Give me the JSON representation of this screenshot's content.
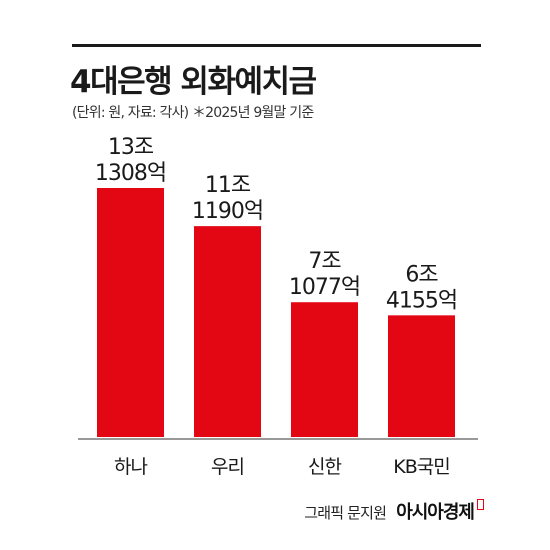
{
  "title": "4대은행 외화예치금",
  "subtitle": "(단위: 원, 자료: 각사) ＊2025년 9월말 기준",
  "credit": {
    "graphic": "그래픽 문지원",
    "logo": "아시아경제"
  },
  "colors": {
    "bar": "#e30613",
    "text": "#1a1a1a"
  },
  "chart_data": {
    "type": "bar",
    "categories": [
      "하나",
      "우리",
      "신한",
      "KB국민"
    ],
    "values": [
      131308,
      111190,
      71077,
      64155
    ],
    "value_labels": [
      [
        "13조",
        "1308억"
      ],
      [
        "11조",
        "1190억"
      ],
      [
        "7조",
        "1077억"
      ],
      [
        "6조",
        "4155억"
      ]
    ],
    "ylim": [
      0,
      131308
    ]
  }
}
